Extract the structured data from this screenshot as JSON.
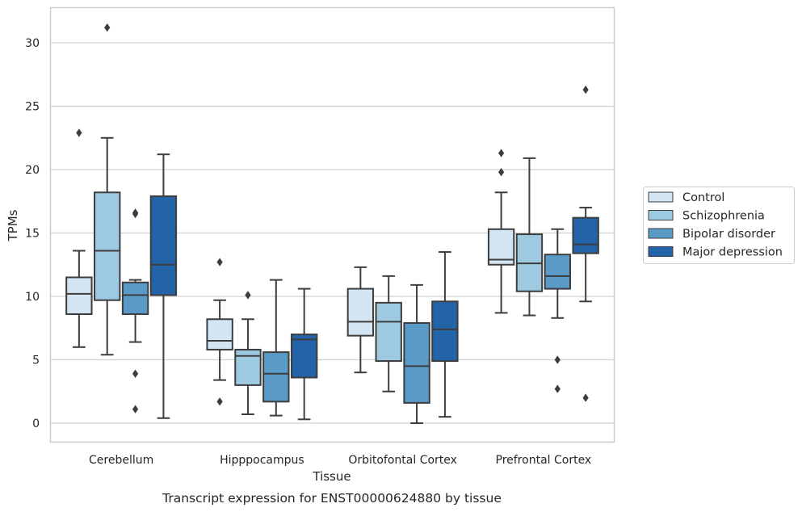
{
  "chart_data": {
    "type": "box",
    "title": "Transcript expression for ENST00000624880 by tissue",
    "xlabel": "Tissue",
    "ylabel": "TPMs",
    "ylim": [
      -1.5,
      32.8
    ],
    "yticks": [
      0,
      5,
      10,
      15,
      20,
      25,
      30
    ],
    "grid": "horizontal",
    "legend_position": "right",
    "categories": [
      "Cerebellum",
      "Hipppocampus",
      "Orbitofontal Cortex",
      "Prefrontal Cortex"
    ],
    "series": [
      {
        "name": "Control",
        "color": "#d3e4f3",
        "boxes": [
          {
            "q1": 8.6,
            "median": 10.2,
            "q3": 11.5,
            "whisker_low": 6.0,
            "whisker_high": 13.6,
            "outliers": [
              22.9
            ]
          },
          {
            "q1": 5.8,
            "median": 6.5,
            "q3": 8.2,
            "whisker_low": 3.4,
            "whisker_high": 9.7,
            "outliers": [
              12.7,
              1.7
            ]
          },
          {
            "q1": 6.9,
            "median": 8.0,
            "q3": 10.6,
            "whisker_low": 4.0,
            "whisker_high": 12.3,
            "outliers": []
          },
          {
            "q1": 12.5,
            "median": 12.9,
            "q3": 15.3,
            "whisker_low": 8.7,
            "whisker_high": 18.2,
            "outliers": [
              21.3,
              19.8
            ]
          }
        ]
      },
      {
        "name": "Schizophrenia",
        "color": "#9ecae1",
        "boxes": [
          {
            "q1": 9.7,
            "median": 13.6,
            "q3": 18.2,
            "whisker_low": 5.4,
            "whisker_high": 22.5,
            "outliers": [
              31.2
            ]
          },
          {
            "q1": 3.0,
            "median": 5.3,
            "q3": 5.8,
            "whisker_low": 0.7,
            "whisker_high": 8.2,
            "outliers": [
              10.1
            ]
          },
          {
            "q1": 4.9,
            "median": 8.0,
            "q3": 9.5,
            "whisker_low": 2.5,
            "whisker_high": 11.6,
            "outliers": []
          },
          {
            "q1": 10.4,
            "median": 12.6,
            "q3": 14.9,
            "whisker_low": 8.5,
            "whisker_high": 20.9,
            "outliers": []
          }
        ]
      },
      {
        "name": "Bipolar disorder",
        "color": "#5a9ac7",
        "boxes": [
          {
            "q1": 8.6,
            "median": 10.1,
            "q3": 11.1,
            "whisker_low": 6.4,
            "whisker_high": 11.3,
            "outliers": [
              16.6,
              16.5,
              3.9,
              1.1
            ]
          },
          {
            "q1": 1.7,
            "median": 3.9,
            "q3": 5.6,
            "whisker_low": 0.6,
            "whisker_high": 11.3,
            "outliers": []
          },
          {
            "q1": 1.6,
            "median": 4.5,
            "q3": 7.9,
            "whisker_low": 0.0,
            "whisker_high": 10.9,
            "outliers": []
          },
          {
            "q1": 10.6,
            "median": 11.6,
            "q3": 13.3,
            "whisker_low": 8.3,
            "whisker_high": 15.3,
            "outliers": [
              5.0,
              2.7
            ]
          }
        ]
      },
      {
        "name": "Major depression",
        "color": "#2363a8",
        "boxes": [
          {
            "q1": 10.1,
            "median": 12.5,
            "q3": 17.9,
            "whisker_low": 0.4,
            "whisker_high": 21.2,
            "outliers": []
          },
          {
            "q1": 3.6,
            "median": 6.6,
            "q3": 7.0,
            "whisker_low": 0.3,
            "whisker_high": 10.6,
            "outliers": []
          },
          {
            "q1": 4.9,
            "median": 7.4,
            "q3": 9.6,
            "whisker_low": 0.5,
            "whisker_high": 13.5,
            "outliers": []
          },
          {
            "q1": 13.4,
            "median": 14.1,
            "q3": 16.2,
            "whisker_low": 9.6,
            "whisker_high": 17.0,
            "outliers": [
              26.3,
              2.0
            ]
          }
        ]
      }
    ]
  }
}
